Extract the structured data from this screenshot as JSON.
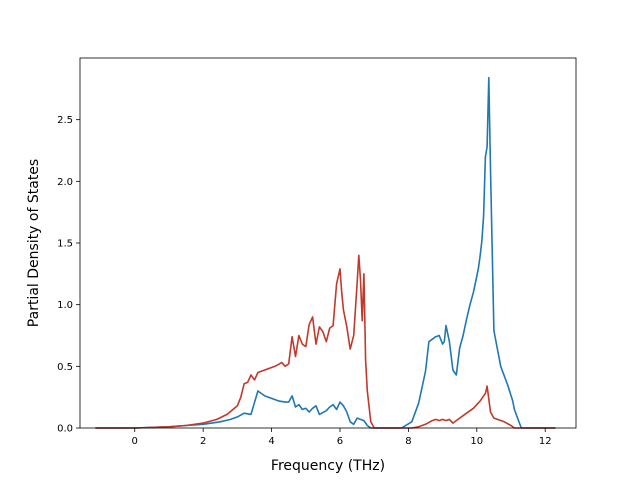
{
  "chart_data": {
    "type": "line",
    "title": "",
    "xlabel": "Frequency (THz)",
    "ylabel": "Partial Density of States",
    "xlim": [
      -1.6,
      12.9
    ],
    "ylim": [
      0,
      3.0
    ],
    "xticks": [
      0,
      2,
      4,
      6,
      8,
      10,
      12
    ],
    "xtick_labels": [
      "0",
      "2",
      "4",
      "6",
      "8",
      "10",
      "12"
    ],
    "yticks": [
      0.0,
      0.5,
      1.0,
      1.5,
      2.0,
      2.5
    ],
    "ytick_labels": [
      "0.0",
      "0.5",
      "1.0",
      "1.5",
      "2.0",
      "2.5"
    ],
    "grid": false,
    "legend": "none",
    "series": [
      {
        "color": "#1f77b4",
        "x": [
          -1.15,
          0.0,
          0.5,
          1.0,
          1.5,
          2.0,
          2.5,
          2.8,
          3.0,
          3.2,
          3.4,
          3.6,
          3.8,
          4.0,
          4.2,
          4.4,
          4.5,
          4.6,
          4.7,
          4.8,
          4.9,
          5.0,
          5.1,
          5.2,
          5.3,
          5.4,
          5.6,
          5.7,
          5.8,
          5.9,
          6.0,
          6.1,
          6.2,
          6.3,
          6.4,
          6.5,
          6.6,
          6.7,
          6.8,
          6.9,
          7.0,
          7.5,
          7.8,
          8.1,
          8.3,
          8.5,
          8.6,
          8.7,
          8.8,
          8.9,
          9.0,
          9.05,
          9.1,
          9.2,
          9.3,
          9.4,
          9.5,
          9.6,
          9.7,
          9.8,
          9.9,
          10.0,
          10.05,
          10.1,
          10.15,
          10.2,
          10.25,
          10.3,
          10.35,
          10.4,
          10.5,
          10.7,
          10.9,
          11.05,
          11.1,
          11.3,
          12.3
        ],
        "y": [
          0.0,
          0.0,
          0.005,
          0.01,
          0.02,
          0.03,
          0.05,
          0.07,
          0.09,
          0.12,
          0.11,
          0.3,
          0.26,
          0.24,
          0.22,
          0.21,
          0.21,
          0.26,
          0.17,
          0.19,
          0.15,
          0.16,
          0.13,
          0.16,
          0.18,
          0.11,
          0.14,
          0.17,
          0.19,
          0.15,
          0.21,
          0.18,
          0.13,
          0.05,
          0.03,
          0.08,
          0.07,
          0.06,
          0.02,
          0.0,
          0.0,
          0.0,
          0.0,
          0.05,
          0.2,
          0.46,
          0.7,
          0.72,
          0.74,
          0.75,
          0.68,
          0.7,
          0.83,
          0.7,
          0.47,
          0.43,
          0.65,
          0.75,
          0.88,
          1.0,
          1.1,
          1.23,
          1.3,
          1.4,
          1.52,
          1.72,
          2.2,
          2.28,
          2.84,
          2.1,
          0.79,
          0.5,
          0.35,
          0.22,
          0.15,
          0.0,
          0.0
        ]
      },
      {
        "color": "#c0392b",
        "x": [
          -1.15,
          0.0,
          0.5,
          1.0,
          1.5,
          2.0,
          2.4,
          2.7,
          3.0,
          3.1,
          3.2,
          3.3,
          3.4,
          3.5,
          3.6,
          3.7,
          3.9,
          4.1,
          4.3,
          4.4,
          4.5,
          4.6,
          4.7,
          4.8,
          4.9,
          5.0,
          5.1,
          5.2,
          5.3,
          5.4,
          5.5,
          5.6,
          5.7,
          5.8,
          5.9,
          6.0,
          6.05,
          6.1,
          6.2,
          6.3,
          6.4,
          6.5,
          6.55,
          6.6,
          6.65,
          6.7,
          6.75,
          6.8,
          6.9,
          7.0,
          7.6,
          7.9,
          8.1,
          8.3,
          8.5,
          8.7,
          8.8,
          8.9,
          9.0,
          9.1,
          9.2,
          9.3,
          9.5,
          9.7,
          9.9,
          10.1,
          10.2,
          10.25,
          10.3,
          10.4,
          10.5,
          10.8,
          11.0,
          11.1,
          11.3,
          12.3
        ],
        "y": [
          0.0,
          0.0,
          0.005,
          0.01,
          0.02,
          0.04,
          0.07,
          0.11,
          0.18,
          0.25,
          0.36,
          0.37,
          0.43,
          0.39,
          0.45,
          0.46,
          0.48,
          0.5,
          0.53,
          0.5,
          0.52,
          0.74,
          0.58,
          0.75,
          0.68,
          0.66,
          0.84,
          0.9,
          0.68,
          0.82,
          0.78,
          0.7,
          0.81,
          0.83,
          1.17,
          1.29,
          1.1,
          0.96,
          0.82,
          0.64,
          0.75,
          1.17,
          1.4,
          1.2,
          0.87,
          1.25,
          0.55,
          0.3,
          0.05,
          0.0,
          0.0,
          0.0,
          0.0,
          0.01,
          0.03,
          0.06,
          0.07,
          0.06,
          0.07,
          0.06,
          0.07,
          0.04,
          0.08,
          0.12,
          0.16,
          0.22,
          0.26,
          0.28,
          0.34,
          0.13,
          0.08,
          0.05,
          0.02,
          0.0,
          0.0,
          0.0
        ]
      }
    ]
  }
}
